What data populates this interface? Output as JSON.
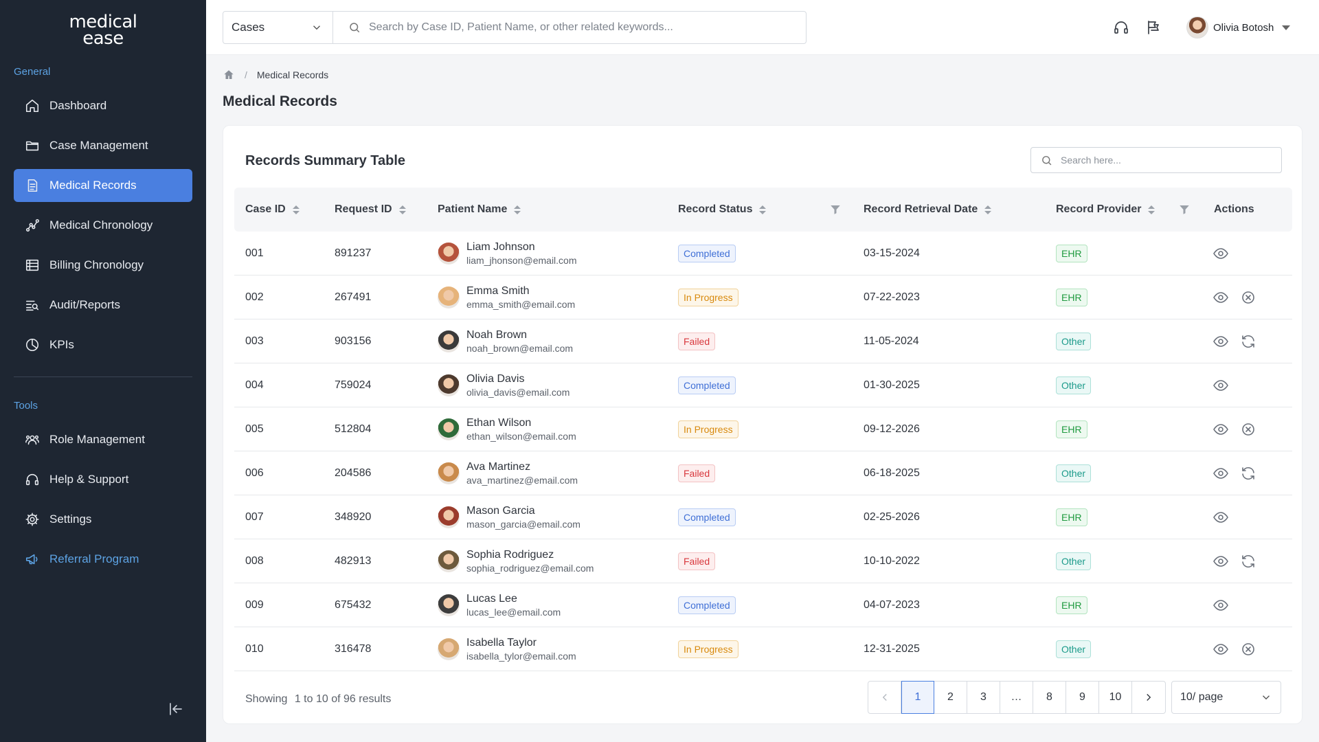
{
  "app": {
    "logo_line1": "medical",
    "logo_line2": "ease"
  },
  "sidebar": {
    "section_general": "General",
    "section_tools": "Tools",
    "general_items": [
      {
        "label": "Dashboard",
        "icon": "home-icon"
      },
      {
        "label": "Case Management",
        "icon": "folder-icon"
      },
      {
        "label": "Medical Records",
        "icon": "document-icon",
        "active": true
      },
      {
        "label": "Medical Chronology",
        "icon": "chart-line-icon"
      },
      {
        "label": "Billing Chronology",
        "icon": "list-icon"
      },
      {
        "label": "Audit/Reports",
        "icon": "search-list-icon"
      },
      {
        "label": "KPIs",
        "icon": "pie-icon"
      }
    ],
    "tools_items": [
      {
        "label": "Role Management",
        "icon": "users-icon"
      },
      {
        "label": "Help & Support",
        "icon": "headset-icon"
      },
      {
        "label": "Settings",
        "icon": "gear-icon"
      },
      {
        "label": "Referral Program",
        "icon": "megaphone-icon"
      }
    ]
  },
  "topbar": {
    "scope_select": "Cases",
    "search_placeholder": "Search by Case ID, Patient Name, or other related keywords...",
    "user_name": "Olivia Botosh"
  },
  "breadcrumb": {
    "current": "Medical Records"
  },
  "page_title": "Medical Records",
  "table": {
    "title": "Records Summary Table",
    "search_placeholder": "Search here...",
    "columns": [
      "Case ID",
      "Request ID",
      "Patient Name",
      "Record Status",
      "Record Retrieval Date",
      "Record Provider",
      "Actions"
    ],
    "rows": [
      {
        "case_id": "001",
        "request_id": "891237",
        "name": "Liam Johnson",
        "email": "liam_jhonson@email.com",
        "status": "Completed",
        "date": "03-15-2024",
        "provider": "EHR",
        "actions": [
          "view"
        ]
      },
      {
        "case_id": "002",
        "request_id": "267491",
        "name": "Emma Smith",
        "email": "emma_smith@email.com",
        "status": "In Progress",
        "date": "07-22-2023",
        "provider": "EHR",
        "actions": [
          "view",
          "cancel"
        ]
      },
      {
        "case_id": "003",
        "request_id": "903156",
        "name": "Noah Brown",
        "email": "noah_brown@email.com",
        "status": "Failed",
        "date": "11-05-2024",
        "provider": "Other",
        "actions": [
          "view",
          "retry"
        ]
      },
      {
        "case_id": "004",
        "request_id": "759024",
        "name": "Olivia Davis",
        "email": "olivia_davis@email.com",
        "status": "Completed",
        "date": "01-30-2025",
        "provider": "Other",
        "actions": [
          "view"
        ]
      },
      {
        "case_id": "005",
        "request_id": "512804",
        "name": "Ethan Wilson",
        "email": "ethan_wilson@email.com",
        "status": "In Progress",
        "date": "09-12-2026",
        "provider": "EHR",
        "actions": [
          "view",
          "cancel"
        ]
      },
      {
        "case_id": "006",
        "request_id": "204586",
        "name": "Ava Martinez",
        "email": "ava_martinez@email.com",
        "status": "Failed",
        "date": "06-18-2025",
        "provider": "Other",
        "actions": [
          "view",
          "retry"
        ]
      },
      {
        "case_id": "007",
        "request_id": "348920",
        "name": "Mason Garcia",
        "email": "mason_garcia@email.com",
        "status": "Completed",
        "date": "02-25-2026",
        "provider": "EHR",
        "actions": [
          "view"
        ]
      },
      {
        "case_id": "008",
        "request_id": "482913",
        "name": "Sophia Rodriguez",
        "email": "sophia_rodriguez@email.com",
        "status": "Failed",
        "date": "10-10-2022",
        "provider": "Other",
        "actions": [
          "view",
          "retry"
        ]
      },
      {
        "case_id": "009",
        "request_id": "675432",
        "name": "Lucas Lee",
        "email": "lucas_lee@email.com",
        "status": "Completed",
        "date": "04-07-2023",
        "provider": "EHR",
        "actions": [
          "view"
        ]
      },
      {
        "case_id": "010",
        "request_id": "316478",
        "name": "Isabella Taylor",
        "email": "isabella_tylor@email.com",
        "status": "In Progress",
        "date": "12-31-2025",
        "provider": "Other",
        "actions": [
          "view",
          "cancel"
        ]
      }
    ]
  },
  "footer": {
    "showing_label": "Showing",
    "showing_range": "1 to 10 of 96 results",
    "pages": [
      "1",
      "2",
      "3",
      "…",
      "8",
      "9",
      "10"
    ],
    "current_page": "1",
    "page_size": "10/ page"
  },
  "colors": {
    "sidebar_bg": "#1e2632",
    "accent": "#4a7fe0",
    "completed": "#3f6fd6",
    "in_progress": "#d8890c",
    "failed": "#d8373c",
    "ehr": "#1f9a3f",
    "other": "#1b9a8a"
  }
}
